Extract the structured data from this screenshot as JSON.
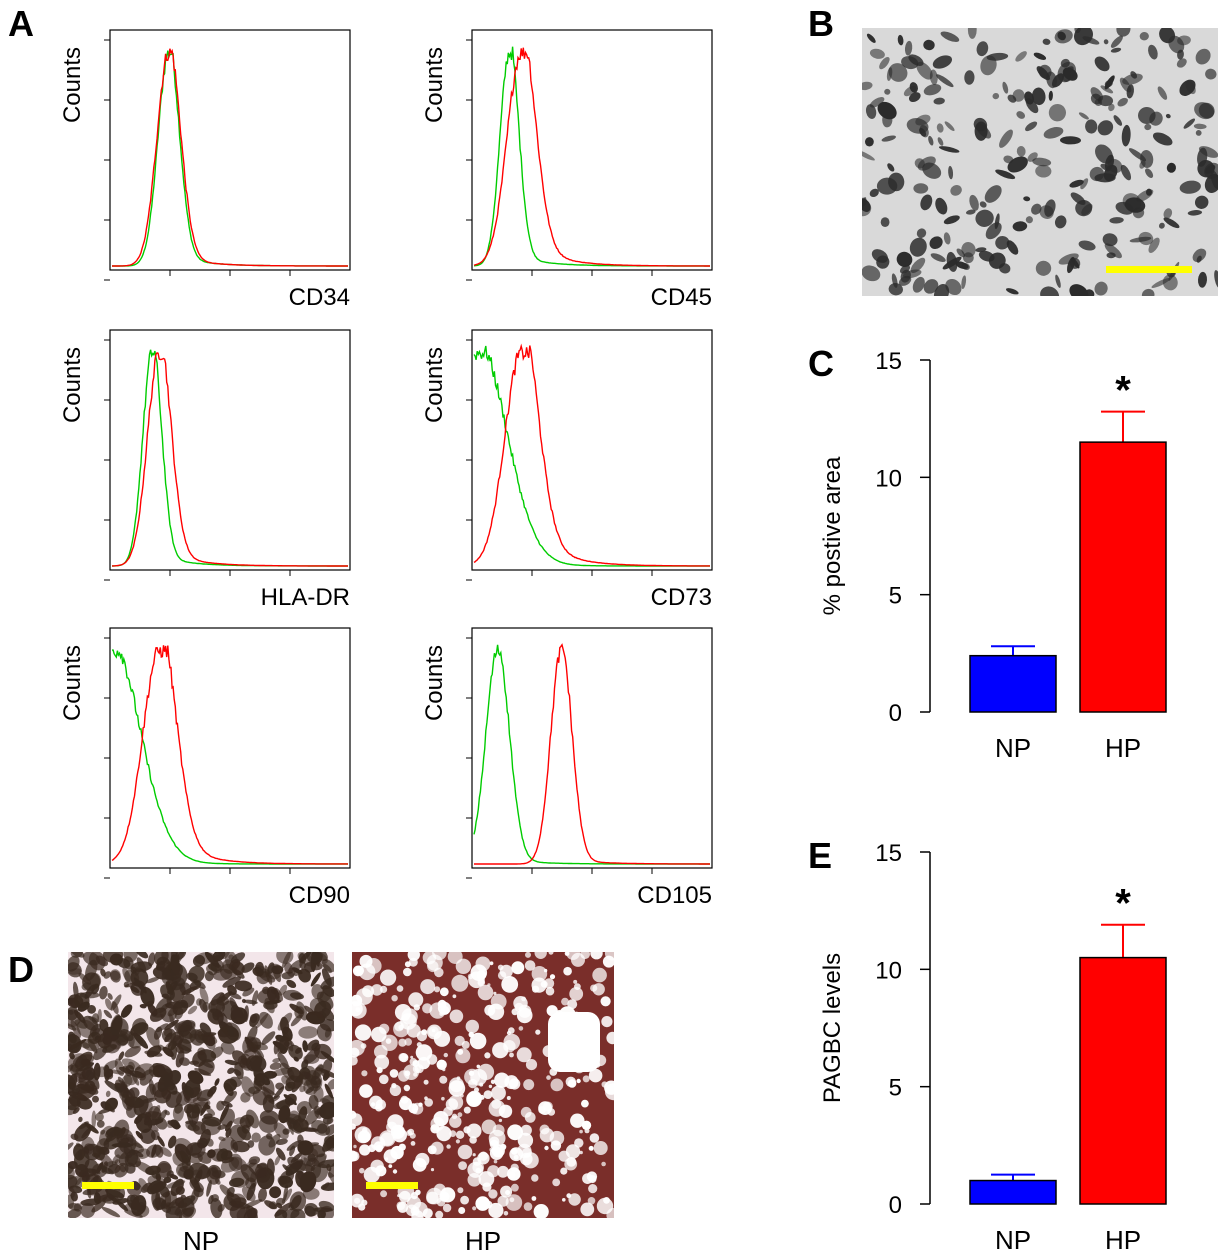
{
  "panels": {
    "a": {
      "letter": "A"
    },
    "b": {
      "letter": "B"
    },
    "c": {
      "letter": "C"
    },
    "d": {
      "letter": "D",
      "labels": [
        "NP",
        "HP"
      ]
    },
    "e": {
      "letter": "E"
    }
  },
  "colors": {
    "isotype": "#00cc00",
    "marker": "#ff0000",
    "np_bar": "#0000ff",
    "hp_bar": "#ff0000",
    "scale_bar": "#ffff00",
    "np_micro_bg": "#f3e6ea",
    "np_micro_stain": "#3a2a20",
    "hp_micro_stain": "#7a2e2a",
    "b_micro_bg": "#d9d9d9",
    "b_micro_cells": "#2b2b2b"
  },
  "chart_data": [
    {
      "type": "line",
      "panel": "A",
      "ylabel": "Counts",
      "xlabel": "CD34",
      "series": [
        {
          "color": "green",
          "peak_position": 0.24,
          "width": 0.045,
          "tail": 0.02
        },
        {
          "color": "red",
          "peak_position": 0.24,
          "width": 0.05,
          "tail": 0.02
        }
      ]
    },
    {
      "type": "line",
      "panel": "A",
      "ylabel": "Counts",
      "xlabel": "CD45",
      "series": [
        {
          "color": "green",
          "peak_position": 0.15,
          "width": 0.04,
          "tail": 0.02
        },
        {
          "color": "red",
          "peak_position": 0.2,
          "width": 0.06,
          "tail": 0.05
        }
      ]
    },
    {
      "type": "line",
      "panel": "A",
      "ylabel": "Counts",
      "xlabel": "HLA-DR",
      "series": [
        {
          "color": "green",
          "peak_position": 0.17,
          "width": 0.04,
          "tail": 0.02
        },
        {
          "color": "red",
          "peak_position": 0.2,
          "width": 0.05,
          "tail": 0.03
        }
      ]
    },
    {
      "type": "line",
      "panel": "A",
      "ylabel": "Counts",
      "xlabel": "CD73",
      "series": [
        {
          "color": "green",
          "peak_position": 0.02,
          "width": 0.12,
          "tail": 0.02
        },
        {
          "color": "red",
          "peak_position": 0.2,
          "width": 0.07,
          "tail": 0.08
        }
      ]
    },
    {
      "type": "line",
      "panel": "A",
      "ylabel": "Counts",
      "xlabel": "CD90",
      "series": [
        {
          "color": "green",
          "peak_position": 0.0,
          "width": 0.12,
          "tail": 0.02
        },
        {
          "color": "red",
          "peak_position": 0.2,
          "width": 0.07,
          "tail": 0.06
        }
      ]
    },
    {
      "type": "line",
      "panel": "A",
      "ylabel": "Counts",
      "xlabel": "CD105",
      "series": [
        {
          "color": "green",
          "peak_position": 0.1,
          "width": 0.05,
          "tail": 0.01
        },
        {
          "color": "red",
          "peak_position": 0.37,
          "width": 0.045,
          "tail": 0.01
        }
      ]
    },
    {
      "type": "bar",
      "panel": "C",
      "categories": [
        "NP",
        "HP"
      ],
      "values": [
        2.4,
        11.5
      ],
      "errors": [
        0.4,
        1.3
      ],
      "significance": [
        "",
        "*"
      ],
      "ylabel": "% postive area",
      "ylim": [
        0,
        15
      ],
      "yticks": [
        0,
        5,
        10,
        15
      ]
    },
    {
      "type": "bar",
      "panel": "E",
      "categories": [
        "NP",
        "HP"
      ],
      "values": [
        1.0,
        10.5
      ],
      "errors": [
        0.25,
        1.4
      ],
      "significance": [
        "",
        "*"
      ],
      "ylabel": "PAGBC levels",
      "ylim": [
        0,
        15
      ],
      "yticks": [
        0,
        5,
        10,
        15
      ]
    }
  ]
}
